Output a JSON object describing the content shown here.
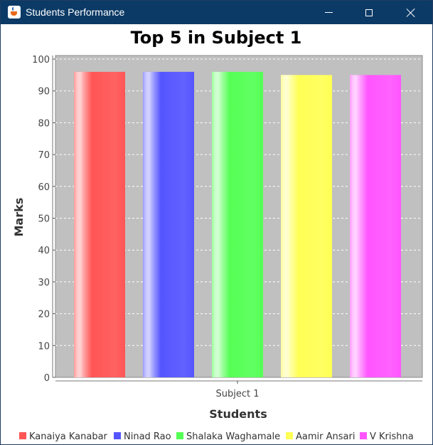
{
  "window": {
    "title": "Students Performance",
    "icon": "java-cup-icon",
    "controls": [
      "minimize-icon",
      "maximize-icon",
      "close-icon"
    ]
  },
  "chart_data": {
    "type": "bar",
    "title": "Top 5 in Subject 1",
    "xlabel": "Students",
    "ylabel": "Marks",
    "categories": [
      "Subject 1"
    ],
    "series": [
      {
        "name": "Kanaiya Kanabar",
        "values": [
          96
        ],
        "color": "#ff5555"
      },
      {
        "name": "Ninad Rao",
        "values": [
          96
        ],
        "color": "#5555ff"
      },
      {
        "name": "Shalaka Waghamale",
        "values": [
          96
        ],
        "color": "#55ff55"
      },
      {
        "name": "Aamir Ansari",
        "values": [
          95
        ],
        "color": "#ffff55"
      },
      {
        "name": "V Krishna",
        "values": [
          95
        ],
        "color": "#ff55ff"
      }
    ],
    "ylim": [
      0,
      100
    ],
    "yticks": [
      0,
      10,
      20,
      30,
      40,
      50,
      60,
      70,
      80,
      90,
      100
    ],
    "grid": true,
    "plot_background": "#c0c0c0",
    "legend_position": "bottom"
  }
}
